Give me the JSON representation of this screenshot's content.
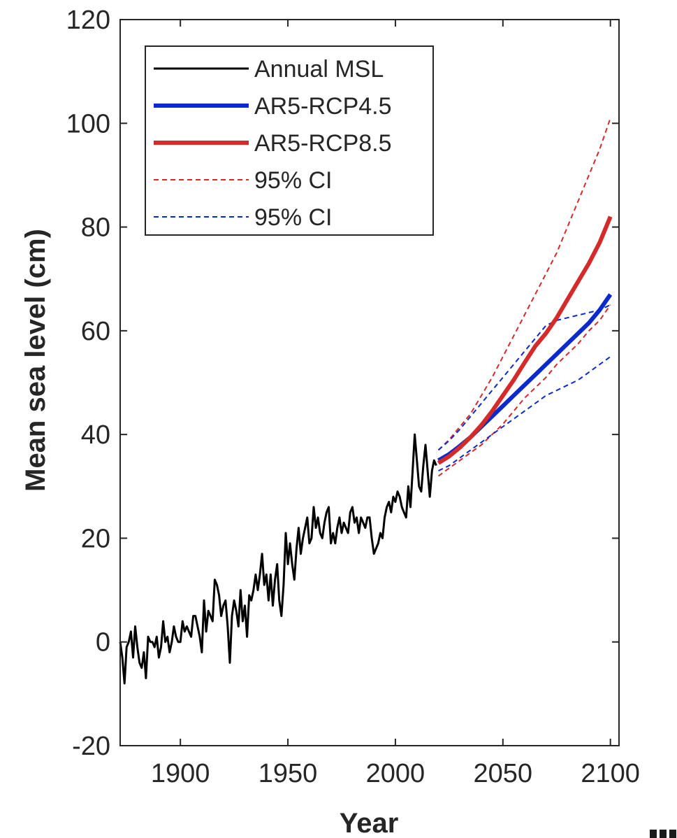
{
  "chart_data": {
    "type": "line",
    "xlabel": "Year",
    "ylabel": "Mean sea level (cm)",
    "xlim": [
      1872,
      2104
    ],
    "ylim": [
      -20,
      120
    ],
    "xticks": [
      1900,
      1950,
      2000,
      2050,
      2100
    ],
    "yticks": [
      -20,
      0,
      20,
      40,
      60,
      80,
      100,
      120
    ],
    "grid": false,
    "legend_position": "top-left",
    "legend": [
      "Annual MSL",
      "AR5-RCP4.5",
      "AR5-RCP8.5",
      "95% CI",
      "95% CI"
    ],
    "series": [
      {
        "name": "Annual MSL",
        "color": "#000000",
        "style": "solid",
        "x": [
          1872,
          1873,
          1874,
          1875,
          1876,
          1877,
          1878,
          1879,
          1880,
          1881,
          1882,
          1883,
          1884,
          1885,
          1886,
          1887,
          1888,
          1889,
          1890,
          1891,
          1892,
          1893,
          1894,
          1895,
          1896,
          1897,
          1898,
          1899,
          1900,
          1901,
          1902,
          1903,
          1904,
          1905,
          1906,
          1907,
          1908,
          1909,
          1910,
          1911,
          1912,
          1913,
          1914,
          1915,
          1916,
          1917,
          1918,
          1919,
          1920,
          1921,
          1922,
          1923,
          1924,
          1925,
          1926,
          1927,
          1928,
          1929,
          1930,
          1931,
          1932,
          1933,
          1934,
          1935,
          1936,
          1937,
          1938,
          1939,
          1940,
          1941,
          1942,
          1943,
          1944,
          1945,
          1946,
          1947,
          1948,
          1949,
          1950,
          1951,
          1952,
          1953,
          1954,
          1955,
          1956,
          1957,
          1958,
          1959,
          1960,
          1961,
          1962,
          1963,
          1964,
          1965,
          1966,
          1967,
          1968,
          1969,
          1970,
          1971,
          1972,
          1973,
          1974,
          1975,
          1976,
          1977,
          1978,
          1979,
          1980,
          1981,
          1982,
          1983,
          1984,
          1985,
          1986,
          1987,
          1988,
          1989,
          1990,
          1991,
          1992,
          1993,
          1994,
          1995,
          1996,
          1997,
          1998,
          1999,
          2000,
          2001,
          2002,
          2003,
          2004,
          2005,
          2006,
          2007,
          2008,
          2009,
          2010,
          2011,
          2012,
          2013,
          2014,
          2015,
          2016,
          2017,
          2018,
          2019
        ],
        "y": [
          0,
          -3,
          -8,
          -1,
          0,
          2,
          -3,
          3,
          -1,
          -4,
          -5,
          -2,
          -7,
          1,
          0,
          0,
          -1,
          1,
          -3,
          -1,
          4,
          0,
          1,
          -2,
          0,
          3,
          1,
          0,
          0,
          4,
          2,
          3,
          2,
          1,
          5,
          5,
          3,
          1,
          -2,
          8,
          2,
          6,
          5,
          4,
          12,
          11,
          9,
          5,
          7,
          8,
          3,
          -4,
          5,
          8,
          6,
          3,
          10,
          4,
          7,
          1,
          9,
          8,
          10,
          13,
          10,
          13,
          17,
          11,
          13,
          8,
          13,
          7,
          12,
          15,
          8,
          5,
          11,
          21,
          15,
          19,
          15,
          12,
          18,
          22,
          17,
          20,
          22,
          24,
          19,
          20,
          26,
          22,
          24,
          21,
          20,
          23,
          25,
          26,
          19,
          21,
          19,
          22,
          24,
          21,
          23,
          22,
          21,
          25,
          26,
          23,
          24,
          21,
          24,
          23,
          22,
          24,
          24,
          20,
          17,
          18,
          19,
          21,
          20,
          24,
          26,
          27,
          25,
          28,
          27,
          29,
          28,
          26,
          25,
          24,
          30,
          26,
          33,
          40,
          35,
          30,
          29,
          34,
          38,
          33,
          28,
          33,
          35,
          34
        ]
      },
      {
        "name": "AR5-RCP4.5",
        "color": "#0a2ad0",
        "style": "solid",
        "x": [
          2020,
          2025,
          2030,
          2035,
          2040,
          2045,
          2050,
          2055,
          2060,
          2065,
          2070,
          2075,
          2080,
          2085,
          2090,
          2095,
          2100
        ],
        "y": [
          35,
          36.2,
          37.8,
          39.5,
          41.5,
          43.5,
          45.5,
          47.5,
          49.5,
          51.5,
          53.5,
          55.5,
          57.5,
          59.5,
          61.5,
          64,
          67
        ]
      },
      {
        "name": "AR5-RCP8.5",
        "color": "#d42a2a",
        "style": "solid",
        "x": [
          2020,
          2025,
          2030,
          2035,
          2040,
          2045,
          2050,
          2055,
          2060,
          2065,
          2070,
          2075,
          2080,
          2085,
          2090,
          2095,
          2100
        ],
        "y": [
          34.5,
          35.8,
          37.5,
          39.5,
          41.8,
          44.5,
          47.5,
          50.5,
          53.8,
          57,
          59.5,
          62.5,
          66,
          69.5,
          73,
          77,
          82
        ]
      },
      {
        "name": "95% CI",
        "color": "#d42a2a",
        "style": "dashed",
        "upper": {
          "x": [
            2020,
            2025,
            2030,
            2035,
            2040,
            2045,
            2050,
            2055,
            2060,
            2065,
            2070,
            2075,
            2080,
            2085,
            2090,
            2095,
            2100
          ],
          "y": [
            37,
            39,
            41.5,
            44,
            47.5,
            51,
            55,
            59,
            63,
            67,
            71,
            75,
            80,
            85,
            90,
            95,
            101
          ]
        },
        "lower": {
          "x": [
            2020,
            2025,
            2030,
            2035,
            2040,
            2045,
            2050,
            2055,
            2060,
            2065,
            2070,
            2075,
            2080,
            2085,
            2090,
            2095,
            2100
          ],
          "y": [
            32,
            33.5,
            35,
            36.5,
            38,
            40,
            42,
            44.5,
            47,
            49,
            51,
            53.5,
            55.5,
            57.5,
            60,
            62,
            65
          ]
        }
      },
      {
        "name": "95% CI",
        "color": "#0a2ad0",
        "style": "dashed",
        "upper": {
          "x": [
            2020,
            2025,
            2030,
            2035,
            2040,
            2045,
            2050,
            2055,
            2060,
            2065,
            2070,
            2075,
            2080,
            2085,
            2090,
            2095,
            2100
          ],
          "y": [
            37,
            38.8,
            41,
            43.5,
            46,
            48.5,
            51,
            53.5,
            56,
            58.5,
            61,
            62,
            62.5,
            63,
            63.5,
            64,
            65
          ]
        },
        "lower": {
          "x": [
            2020,
            2025,
            2030,
            2035,
            2040,
            2045,
            2050,
            2055,
            2060,
            2065,
            2070,
            2075,
            2080,
            2085,
            2090,
            2095,
            2100
          ],
          "y": [
            33,
            34,
            35.5,
            37,
            38.5,
            40,
            41.5,
            43,
            44.5,
            46,
            47.5,
            48.5,
            49.5,
            50.5,
            52,
            53.5,
            55
          ]
        }
      }
    ]
  }
}
